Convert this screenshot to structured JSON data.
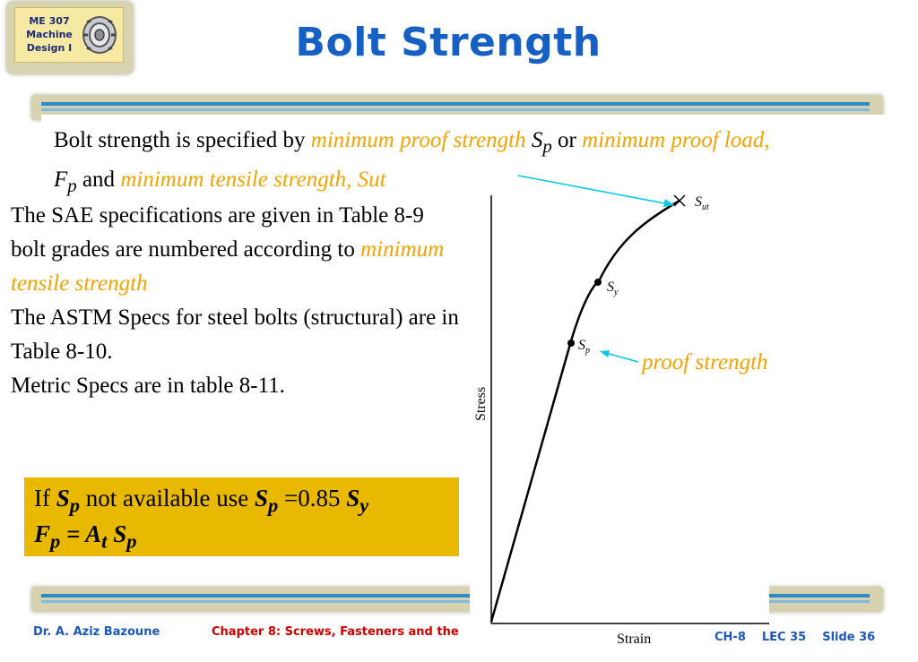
{
  "logo": {
    "line1": "ME 307",
    "line2": "Machine",
    "line3": "Design I"
  },
  "title": "Bolt Strength",
  "intro": {
    "t1": "Bolt strength is specified by ",
    "o1": "minimum proof strength",
    "s1": "S",
    "s1sub": "p",
    "t2": " or ",
    "o2": "minimum proof load,",
    "s2": "F",
    "s2sub": "p",
    "t3": " and ",
    "o3": "minimum tensile strength, Sut"
  },
  "left": {
    "p1a": "The SAE specifications are given in Table 8-9 bolt grades are numbered according to ",
    "p1b": "minimum tensile strength",
    "p2": "The ASTM Specs for steel bolts (structural) are in Table 8-10.",
    "p3": "Metric Specs are in table 8-11."
  },
  "note": {
    "a": "If ",
    "b": "S",
    "bsub": "p",
    "c": " not available use ",
    "d": "S",
    "dsub": "p",
    "e": " =0.85 ",
    "f": "S",
    "fsub": "y",
    "g1": "F",
    "g1sub": "p",
    "g2": " = A",
    "g2sub": "t",
    "g3": " S",
    "g3sub": "p"
  },
  "graph": {
    "ylabel": "Stress",
    "xlabel": "Strain",
    "sut": "S",
    "sutsub": "ut",
    "sy": "S",
    "sysub": "y",
    "sp": "S",
    "spsub": "p",
    "proof": "proof strength"
  },
  "footer": {
    "author": "Dr. A. Aziz Bazoune",
    "chapter": "Chapter 8: Screws, Fasteners and the",
    "ch": "CH-8",
    "lec": "LEC 35",
    "slide": "Slide 36"
  },
  "colors": {
    "title": "#1560c2",
    "orange": "#f0a400",
    "note_bg": "#e9b800",
    "footer_blue": "#1d57b7",
    "footer_red": "#c80000",
    "arrow": "#00c8e6"
  }
}
